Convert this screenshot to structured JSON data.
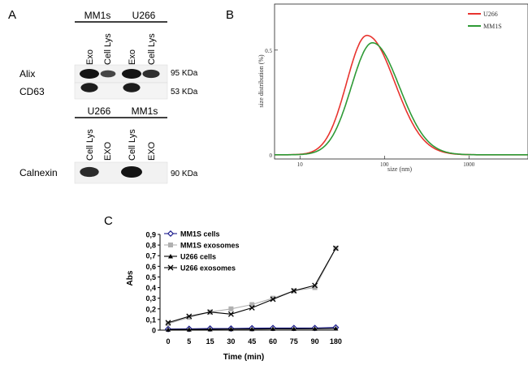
{
  "panels": {
    "a": {
      "letter": "A",
      "top_groups": [
        {
          "name": "MM1s",
          "lanes": [
            "Exo",
            "Cell Lys"
          ]
        },
        {
          "name": "U266",
          "lanes": [
            "Exo",
            "Cell Lys"
          ]
        }
      ],
      "top_rows": [
        {
          "label": "Alix",
          "size": "95 KDa"
        },
        {
          "label": "CD63",
          "size": "53 KDa"
        }
      ],
      "bottom_groups": [
        {
          "name": "U266",
          "lanes": [
            "Cell Lys",
            "EXO"
          ]
        },
        {
          "name": "MM1s",
          "lanes": [
            "Cell Lys",
            "EXO"
          ]
        }
      ],
      "bottom_rows": [
        {
          "label": "Calnexin",
          "size": "90 KDa"
        }
      ],
      "band_intensity": {
        "alix": [
          1.0,
          0.45,
          1.0,
          0.7
        ],
        "cd63": [
          0.9,
          0.0,
          0.9,
          0.0
        ],
        "calnexin": [
          0.75,
          0.0,
          1.0,
          0.0
        ]
      }
    },
    "b": {
      "letter": "B",
      "colors": {
        "u266": "#e8342f",
        "mm1s": "#2e9a36"
      }
    },
    "c": {
      "letter": "C"
    }
  },
  "chart_data": [
    {
      "type": "line",
      "panel": "B",
      "xlabel": "size  (nm)",
      "ylabel": "size distribution  (%)",
      "xscale": "log",
      "xlim": [
        5,
        5000
      ],
      "ylim": [
        -0.02,
        0.72
      ],
      "x_ticks": [
        10,
        100,
        1000
      ],
      "x_tick_labels": [
        "10",
        "100",
        "1000"
      ],
      "y_ticks": [
        0,
        0.5
      ],
      "y_tick_labels": [
        "0",
        "0.5"
      ],
      "legend": "top-right",
      "series": [
        {
          "name": "U266",
          "color": "#e8342f",
          "peak_x": 62,
          "peak_y": 0.57,
          "width_left": 0.24,
          "width_right": 0.33
        },
        {
          "name": "MM1S",
          "color": "#2e9a36",
          "peak_x": 72,
          "peak_y": 0.535,
          "width_left": 0.25,
          "width_right": 0.32
        }
      ]
    },
    {
      "type": "line",
      "panel": "C",
      "xlabel": "Time (min)",
      "ylabel": "Abs",
      "categories": [
        "0",
        "5",
        "15",
        "30",
        "45",
        "60",
        "75",
        "90",
        "180"
      ],
      "ylim": [
        0,
        0.9
      ],
      "y_ticks": [
        0,
        0.1,
        0.2,
        0.3,
        0.4,
        0.5,
        0.6,
        0.7,
        0.8,
        0.9
      ],
      "y_tick_labels": [
        "0",
        "0,1",
        "0,2",
        "0,3",
        "0,4",
        "0,5",
        "0,6",
        "0,7",
        "0,8",
        "0,9"
      ],
      "legend": "top-left",
      "series": [
        {
          "name": "MM1S cells",
          "color": "#1a1a8c",
          "marker": "diamond",
          "values": [
            0.01,
            0.012,
            0.015,
            0.015,
            0.018,
            0.02,
            0.02,
            0.02,
            0.025
          ]
        },
        {
          "name": "MM1S exosomes",
          "color": "#b0b0b0",
          "marker": "square",
          "values": [
            0.06,
            0.12,
            0.17,
            0.2,
            0.24,
            0.3,
            0.37,
            0.4,
            0.77
          ]
        },
        {
          "name": "U266 cells",
          "color": "#000000",
          "marker": "triangle",
          "values": [
            0.005,
            0.006,
            0.008,
            0.01,
            0.01,
            0.012,
            0.012,
            0.013,
            0.015
          ]
        },
        {
          "name": "U266 exosomes",
          "color": "#000000",
          "marker": "x",
          "values": [
            0.07,
            0.13,
            0.17,
            0.15,
            0.21,
            0.29,
            0.37,
            0.42,
            0.77
          ]
        }
      ]
    }
  ]
}
